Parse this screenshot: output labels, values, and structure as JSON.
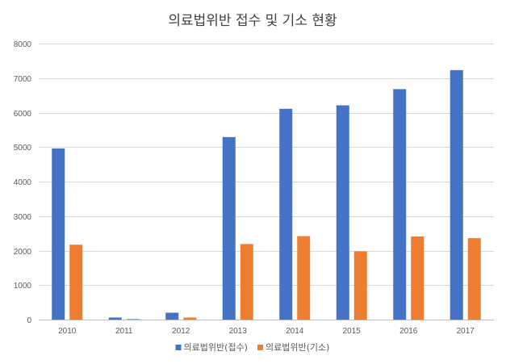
{
  "chart_data": {
    "type": "bar",
    "title": "의료법위반 접수 및 기소 현황",
    "xlabel": "",
    "ylabel": "",
    "categories": [
      "2010",
      "2011",
      "2012",
      "2013",
      "2014",
      "2015",
      "2016",
      "2017"
    ],
    "series": [
      {
        "name": "의료법위반(접수)",
        "color": "#4472c4",
        "values": [
          4960,
          60,
          200,
          5290,
          6110,
          6210,
          6680,
          7230
        ]
      },
      {
        "name": "의료법위반(기소)",
        "color": "#ed7d31",
        "values": [
          2170,
          20,
          60,
          2190,
          2420,
          1980,
          2410,
          2360
        ]
      }
    ],
    "ylim": [
      0,
      8000
    ],
    "yticks": [
      0,
      1000,
      2000,
      3000,
      4000,
      5000,
      6000,
      7000,
      8000
    ],
    "grid": true,
    "legend": "bottom"
  }
}
